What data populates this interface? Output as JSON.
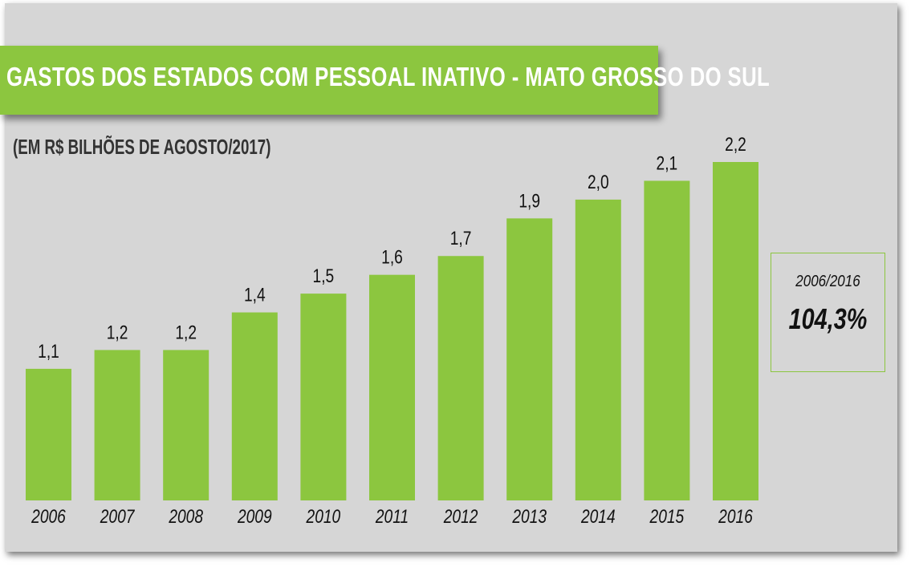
{
  "chart_data": {
    "type": "bar",
    "title": "GASTOS DOS ESTADOS COM PESSOAL INATIVO - MATO GROSSO DO SUL",
    "subtitle": "(EM R$ BILHÕES DE AGOSTO/2017)",
    "categories": [
      "2006",
      "2007",
      "2008",
      "2009",
      "2010",
      "2011",
      "2012",
      "2013",
      "2014",
      "2015",
      "2016"
    ],
    "values": [
      1.1,
      1.2,
      1.2,
      1.4,
      1.5,
      1.6,
      1.7,
      1.9,
      2.0,
      2.1,
      2.2
    ],
    "data_labels": [
      "1,1",
      "1,2",
      "1,2",
      "1,4",
      "1,5",
      "1,6",
      "1,7",
      "1,9",
      "2,0",
      "2,1",
      "2,2"
    ],
    "xlabel": "",
    "ylabel": "",
    "ylim": [
      0.4,
      2.2
    ],
    "grid": false,
    "bar_color": "#8cc63f",
    "annotation": {
      "period": "2006/2016",
      "value": "104,3%"
    }
  }
}
